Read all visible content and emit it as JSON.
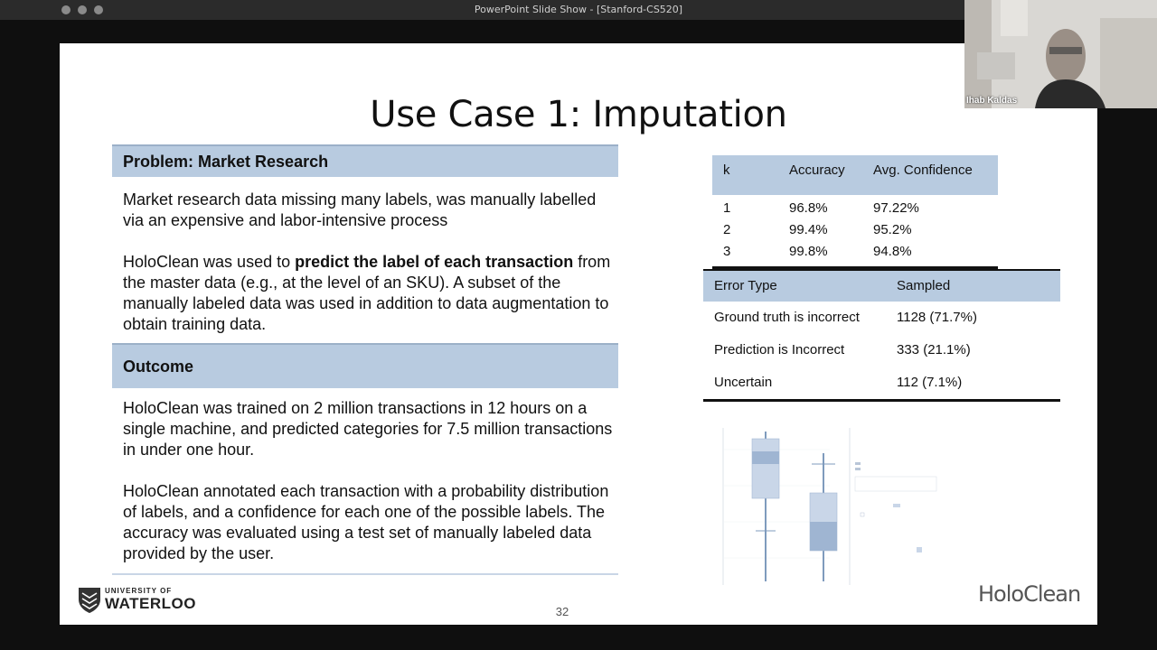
{
  "window": {
    "title": "PowerPoint Slide Show - [Stanford-CS520]"
  },
  "slide": {
    "title": "Use Case 1: Imputation",
    "problem": {
      "heading": "Problem: Market Research",
      "p1": "Market research data missing many labels, was manually labelled via an expensive and labor-intensive process",
      "p2_prefix": "HoloClean was used to ",
      "p2_bold": "predict the label of each transaction",
      "p2_suffix": " from the master data (e.g., at the level of an SKU). A subset of the manually labeled data was used in addition to data augmentation to obtain training data."
    },
    "outcome": {
      "heading": "Outcome",
      "p1": "HoloClean was trained on 2 million transactions in 12 hours on a single machine, and predicted categories for 7.5 million transactions in under one hour.",
      "p2": "HoloClean annotated each transaction with a probability distribution of labels, and a confidence for each one of the possible labels. The accuracy was evaluated using a test set of manually labeled data provided by the user."
    },
    "k_table": {
      "headers": [
        "k",
        "Accuracy",
        "Avg.  Confidence"
      ],
      "rows": [
        [
          "1",
          "96.8%",
          "97.22%"
        ],
        [
          "2",
          "99.4%",
          "95.2%"
        ],
        [
          "3",
          "99.8%",
          "94.8%"
        ]
      ]
    },
    "error_table": {
      "headers": [
        "Error Type",
        "Sampled"
      ],
      "rows": [
        [
          "Ground truth is incorrect",
          "1128 (71.7%)"
        ],
        [
          "Prediction is Incorrect",
          "333 (21.1%)"
        ],
        [
          "Uncertain",
          "112 (7.1%)"
        ]
      ]
    },
    "footer": {
      "university_small": "UNIVERSITY OF",
      "university_big": "WATERLOO",
      "page_number": "32",
      "brand": "HoloClean"
    }
  },
  "webcam": {
    "name": "Ihab Kaldas"
  },
  "colors": {
    "band": "#b8cbe0",
    "slide_bg": "#ffffff",
    "window_bg": "#0f0f0f"
  }
}
